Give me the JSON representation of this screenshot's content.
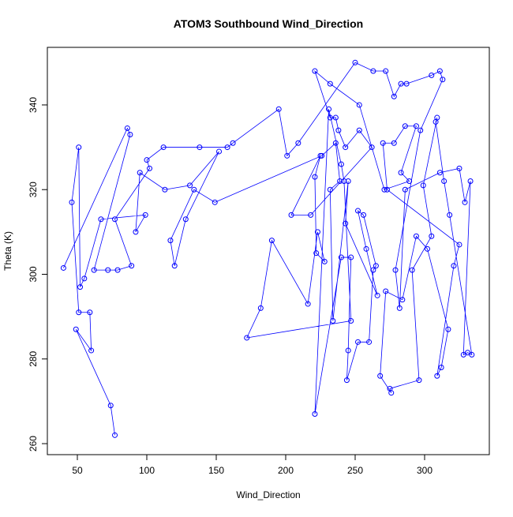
{
  "chart_data": {
    "type": "line",
    "title": "ATOM3 Southbound Wind_Direction",
    "x_label": "Wind_Direction",
    "y_label": "Theta (K)",
    "color": "#0000ff",
    "markers": true,
    "x": [
      40,
      86,
      88,
      62,
      72,
      79,
      89,
      77,
      102,
      100,
      112,
      138,
      158,
      162,
      195,
      201,
      209,
      250,
      263,
      272,
      278,
      283,
      287,
      305,
      311,
      313,
      297,
      279,
      282,
      286,
      311,
      325,
      329,
      333,
      328,
      331,
      334,
      318,
      314,
      308,
      309,
      299,
      305,
      291,
      296,
      275,
      276,
      268,
      272,
      284,
      294,
      302,
      317,
      312,
      309,
      321,
      325,
      273,
      270,
      278,
      286,
      294,
      283,
      289,
      271,
      253,
      232,
      221,
      232,
      236,
      238,
      243,
      253,
      262,
      218,
      204,
      225,
      221,
      222,
      228,
      223,
      216,
      190,
      182,
      172,
      247,
      242,
      240,
      231,
      221,
      240,
      247,
      245,
      244,
      252,
      260,
      263,
      265,
      256,
      252,
      258,
      266,
      243,
      245,
      234,
      232,
      239,
      236,
      226,
      149,
      134,
      117,
      120,
      128,
      152,
      131,
      113,
      95,
      92,
      99,
      67,
      55,
      52,
      51,
      46,
      51,
      59,
      60,
      49,
      74,
      77
    ],
    "values": [
      301.5,
      334.5,
      333,
      301,
      301,
      301,
      302,
      313,
      325,
      327,
      330,
      330,
      330,
      331,
      339,
      328,
      331,
      350,
      348,
      348,
      342,
      345,
      345,
      347,
      348,
      346,
      334,
      301,
      292,
      320,
      324,
      325,
      317,
      322,
      281,
      281.5,
      281,
      314,
      322,
      336,
      337,
      321,
      309,
      301,
      275,
      273,
      272,
      276,
      296,
      294,
      309,
      306,
      287,
      278,
      276,
      302,
      307,
      320,
      331,
      331,
      335,
      335,
      324,
      322,
      320,
      340,
      345,
      348,
      337,
      337,
      334,
      330,
      334,
      330,
      314,
      314,
      328,
      323,
      305,
      303,
      310,
      293,
      308,
      292,
      285,
      289,
      322,
      326,
      339,
      267,
      304,
      304,
      282,
      275,
      284,
      284,
      301,
      302,
      314,
      315,
      306,
      295,
      312,
      322,
      289,
      320,
      322,
      331,
      328,
      317,
      320,
      308,
      302,
      313,
      329,
      321,
      320,
      324,
      310,
      314,
      313,
      299,
      297,
      330,
      317,
      291,
      291,
      282,
      287,
      269,
      262
    ],
    "xlim": [
      28.4,
      346.6
    ],
    "ylim": [
      257.4,
      353.6
    ],
    "xticks": [
      50,
      100,
      150,
      200,
      250,
      300
    ],
    "yticks": [
      260,
      280,
      300,
      320,
      340
    ]
  }
}
